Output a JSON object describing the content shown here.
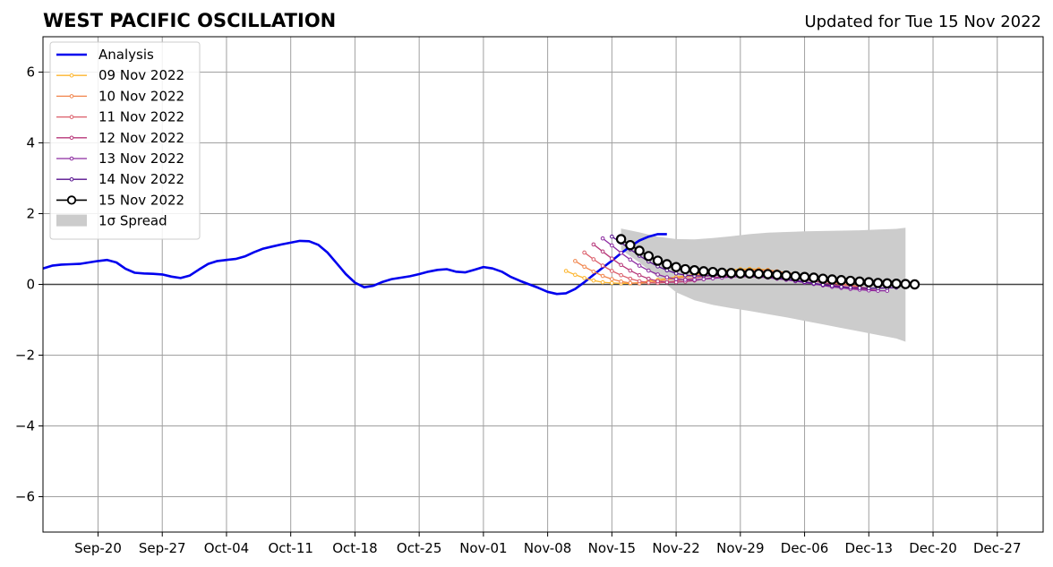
{
  "chart_data": {
    "type": "line",
    "title": "WEST PACIFIC OSCILLATION",
    "subtitle": "Updated for Tue 15 Nov 2022",
    "xlabel": "",
    "ylabel": "",
    "ylim": [
      -7,
      7
    ],
    "xlim": [
      "2022-09-14",
      "2023-01-01"
    ],
    "yticks": [
      -6,
      -4,
      -2,
      0,
      2,
      4,
      6
    ],
    "ytick_labels": [
      "−6",
      "−4",
      "−2",
      "0",
      "2",
      "4",
      "6"
    ],
    "xticks": [
      "2022-09-20",
      "2022-09-27",
      "2022-10-04",
      "2022-10-11",
      "2022-10-18",
      "2022-10-25",
      "2022-11-01",
      "2022-11-08",
      "2022-11-15",
      "2022-11-22",
      "2022-11-29",
      "2022-12-06",
      "2022-12-13",
      "2022-12-20",
      "2022-12-27"
    ],
    "xtick_labels": [
      "Sep-20",
      "Sep-27",
      "Oct-04",
      "Oct-11",
      "Oct-18",
      "Oct-25",
      "Nov-01",
      "Nov-08",
      "Nov-15",
      "Nov-22",
      "Nov-29",
      "Dec-06",
      "Dec-13",
      "Dec-20",
      "Dec-27"
    ],
    "grid": true,
    "zero_line": true,
    "legend": {
      "placement": "top-left",
      "entries": [
        "Analysis",
        "09 Nov 2022",
        "10 Nov 2022",
        "11 Nov 2022",
        "12 Nov 2022",
        "13 Nov 2022",
        "14 Nov 2022",
        "15 Nov 2022",
        "1σ Spread"
      ]
    },
    "analysis": {
      "name": "Analysis",
      "color": "#0000ee",
      "start": "2022-09-14",
      "values": [
        0.45,
        0.53,
        0.56,
        0.57,
        0.58,
        0.62,
        0.66,
        0.69,
        0.62,
        0.44,
        0.33,
        0.31,
        0.3,
        0.28,
        0.22,
        0.18,
        0.25,
        0.42,
        0.58,
        0.66,
        0.69,
        0.72,
        0.79,
        0.91,
        1.01,
        1.07,
        1.13,
        1.18,
        1.23,
        1.22,
        1.12,
        0.9,
        0.6,
        0.29,
        0.05,
        -0.08,
        -0.04,
        0.07,
        0.15,
        0.19,
        0.23,
        0.29,
        0.36,
        0.41,
        0.43,
        0.36,
        0.34,
        0.41,
        0.49,
        0.45,
        0.36,
        0.21,
        0.1,
        0.0,
        -0.1,
        -0.21,
        -0.27,
        -0.25,
        -0.13,
        0.06,
        0.27,
        0.47,
        0.67,
        0.88,
        1.07,
        1.24,
        1.35,
        1.42,
        1.42
      ]
    },
    "spread": {
      "name": "1σ Spread",
      "color": "#cccccc",
      "x": [
        "2022-11-16",
        "2022-11-18",
        "2022-11-20",
        "2022-11-22",
        "2022-11-24",
        "2022-11-26",
        "2022-11-28",
        "2022-11-30",
        "2022-12-02",
        "2022-12-04",
        "2022-12-06",
        "2022-12-08",
        "2022-12-10",
        "2022-12-12",
        "2022-12-14",
        "2022-12-16",
        "2022-12-17"
      ],
      "upper": [
        1.58,
        1.47,
        1.35,
        1.28,
        1.27,
        1.31,
        1.36,
        1.42,
        1.46,
        1.48,
        1.5,
        1.51,
        1.52,
        1.53,
        1.55,
        1.57,
        1.6
      ],
      "lower": [
        0.98,
        0.62,
        0.2,
        -0.22,
        -0.45,
        -0.58,
        -0.67,
        -0.75,
        -0.84,
        -0.93,
        -1.03,
        -1.13,
        -1.23,
        -1.33,
        -1.43,
        -1.53,
        -1.62
      ]
    },
    "forecasts": [
      {
        "name": "09 Nov 2022",
        "color": "#fdb52e",
        "start": "2022-11-10",
        "values": [
          0.38,
          0.27,
          0.18,
          0.11,
          0.06,
          0.04,
          0.03,
          0.03,
          0.05,
          0.09,
          0.13,
          0.17,
          0.21,
          0.24,
          0.28,
          0.32,
          0.36,
          0.39,
          0.41,
          0.43,
          0.44,
          0.43,
          0.41,
          0.37,
          0.33,
          0.28,
          0.22,
          0.16,
          0.1,
          0.05,
          0.0,
          -0.04
        ]
      },
      {
        "name": "10 Nov 2022",
        "color": "#f1844b",
        "start": "2022-11-11",
        "values": [
          0.66,
          0.5,
          0.36,
          0.24,
          0.15,
          0.08,
          0.04,
          0.03,
          0.05,
          0.09,
          0.13,
          0.17,
          0.21,
          0.25,
          0.28,
          0.32,
          0.35,
          0.38,
          0.4,
          0.41,
          0.41,
          0.4,
          0.37,
          0.33,
          0.29,
          0.24,
          0.19,
          0.13,
          0.08,
          0.03,
          -0.02,
          -0.06
        ]
      },
      {
        "name": "11 Nov 2022",
        "color": "#db5c68",
        "start": "2022-11-12",
        "values": [
          0.9,
          0.71,
          0.53,
          0.38,
          0.26,
          0.16,
          0.09,
          0.05,
          0.04,
          0.06,
          0.1,
          0.14,
          0.18,
          0.22,
          0.26,
          0.3,
          0.33,
          0.35,
          0.37,
          0.37,
          0.36,
          0.34,
          0.31,
          0.27,
          0.22,
          0.17,
          0.12,
          0.06,
          0.01,
          -0.04,
          -0.08,
          -0.11
        ]
      },
      {
        "name": "12 Nov 2022",
        "color": "#b73779",
        "start": "2022-11-13",
        "values": [
          1.13,
          0.93,
          0.73,
          0.55,
          0.39,
          0.26,
          0.16,
          0.09,
          0.06,
          0.06,
          0.08,
          0.11,
          0.15,
          0.19,
          0.22,
          0.25,
          0.27,
          0.28,
          0.28,
          0.27,
          0.25,
          0.22,
          0.18,
          0.14,
          0.09,
          0.05,
          0.0,
          -0.05,
          -0.09,
          -0.13,
          -0.15,
          -0.17
        ]
      },
      {
        "name": "13 Nov 2022",
        "color": "#8c2aa0",
        "start": "2022-11-14",
        "values": [
          1.3,
          1.1,
          0.89,
          0.7,
          0.53,
          0.39,
          0.28,
          0.2,
          0.15,
          0.13,
          0.13,
          0.15,
          0.17,
          0.19,
          0.21,
          0.22,
          0.22,
          0.21,
          0.19,
          0.16,
          0.13,
          0.09,
          0.05,
          0.01,
          -0.03,
          -0.07,
          -0.1,
          -0.13,
          -0.15,
          -0.17,
          -0.18,
          -0.18
        ]
      },
      {
        "name": "14 Nov 2022",
        "color": "#56108e",
        "start": "2022-11-15",
        "values": [
          1.35,
          1.18,
          0.99,
          0.81,
          0.65,
          0.51,
          0.4,
          0.31,
          0.26,
          0.24,
          0.24,
          0.25,
          0.27,
          0.28,
          0.28,
          0.27,
          0.25,
          0.22,
          0.19,
          0.15,
          0.11,
          0.07,
          0.03,
          -0.01,
          -0.04,
          -0.07,
          -0.09,
          -0.1,
          -0.11,
          -0.11,
          -0.1,
          -0.09
        ]
      },
      {
        "name": "15 Nov 2022",
        "color": "#000000",
        "start": "2022-11-16",
        "values": [
          1.28,
          1.11,
          0.95,
          0.8,
          0.67,
          0.57,
          0.49,
          0.43,
          0.4,
          0.37,
          0.35,
          0.33,
          0.32,
          0.31,
          0.31,
          0.3,
          0.29,
          0.27,
          0.25,
          0.23,
          0.21,
          0.19,
          0.16,
          0.14,
          0.12,
          0.1,
          0.08,
          0.06,
          0.04,
          0.03,
          0.02,
          0.01,
          0.0
        ]
      }
    ]
  }
}
